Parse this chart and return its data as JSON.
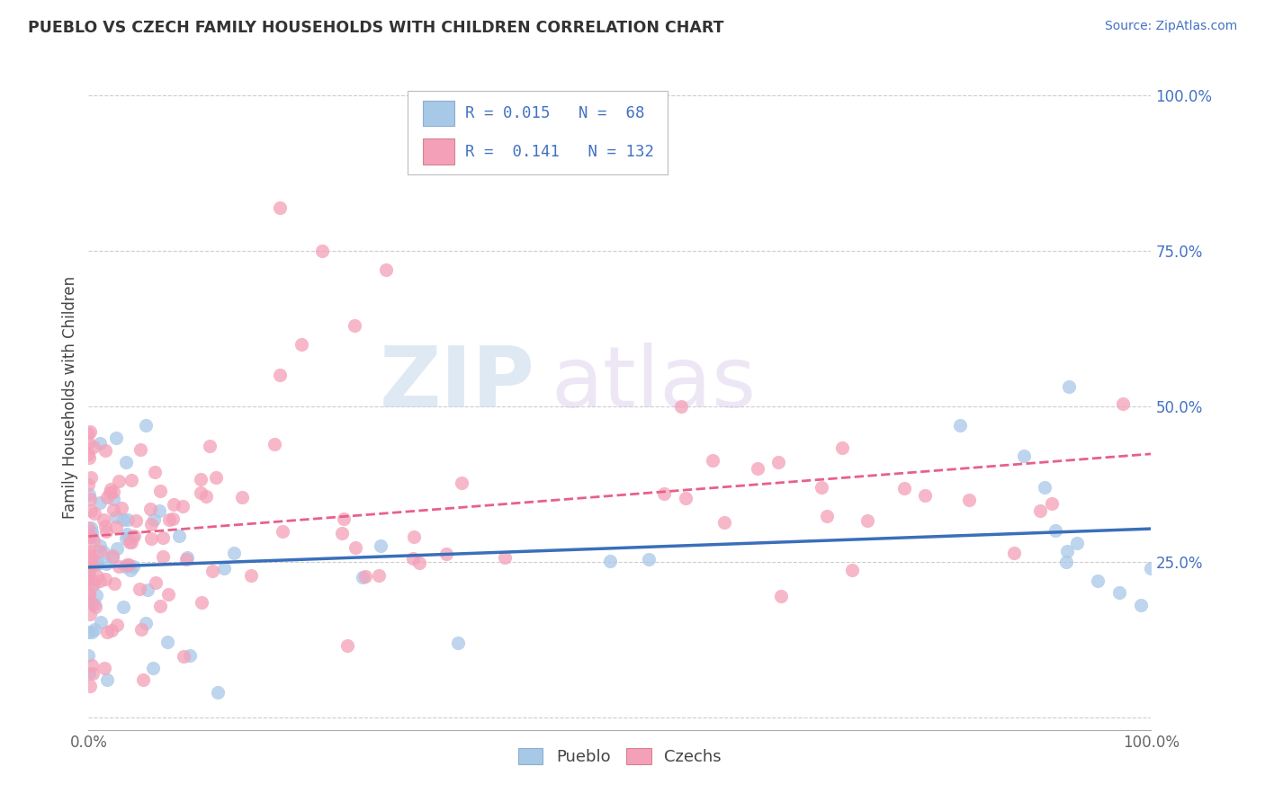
{
  "title": "PUEBLO VS CZECH FAMILY HOUSEHOLDS WITH CHILDREN CORRELATION CHART",
  "source": "Source: ZipAtlas.com",
  "ylabel": "Family Households with Children",
  "xlim": [
    0.0,
    1.0
  ],
  "ylim": [
    -0.02,
    1.05
  ],
  "yticks": [
    0.0,
    0.25,
    0.5,
    0.75,
    1.0
  ],
  "ytick_labels": [
    "",
    "25.0%",
    "50.0%",
    "75.0%",
    "100.0%"
  ],
  "xtick_labels": [
    "0.0%",
    "100.0%"
  ],
  "legend_labels": [
    "Pueblo",
    "Czechs"
  ],
  "pueblo_color": "#a8c8e8",
  "czech_color": "#f4a0b8",
  "pueblo_line_color": "#3a6fba",
  "czech_line_color": "#e8608a",
  "pueblo_R": 0.015,
  "pueblo_N": 68,
  "czech_R": 0.141,
  "czech_N": 132,
  "watermark_zip": "ZIP",
  "watermark_atlas": "atlas",
  "background_color": "#ffffff",
  "grid_color": "#c8c8c8",
  "legend_text_color": "#4472c4",
  "title_color": "#333333",
  "source_color": "#4472c4"
}
